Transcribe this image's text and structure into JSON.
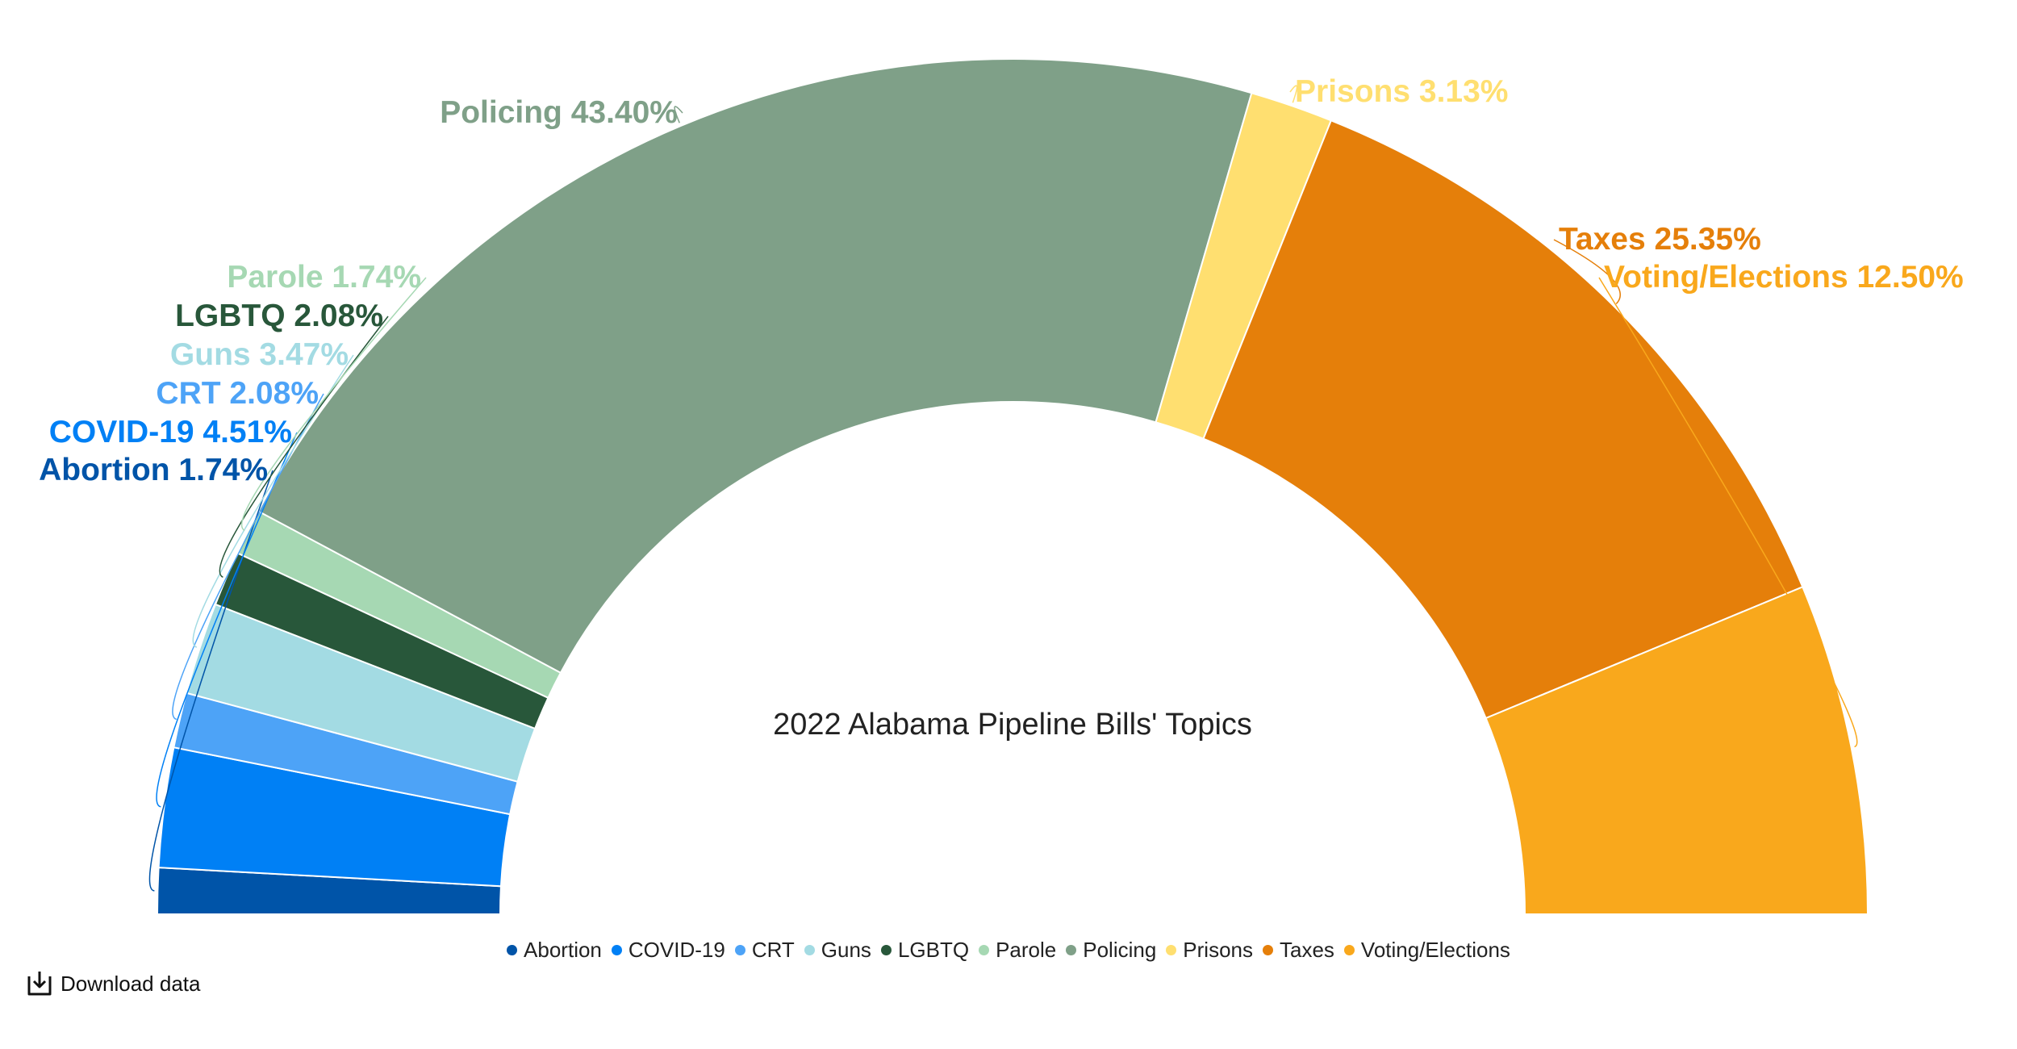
{
  "chart_data": {
    "type": "pie",
    "subtype": "half-donut",
    "title": "2022 Alabama Pipeline Bills' Topics",
    "slices": [
      {
        "name": "Abortion",
        "value": 1.74,
        "label": "Abortion 1.74%",
        "color": "#0054A8"
      },
      {
        "name": "COVID-19",
        "value": 4.51,
        "label": "COVID-19 4.51%",
        "color": "#0080F5"
      },
      {
        "name": "CRT",
        "value": 2.08,
        "label": "CRT 2.08%",
        "color": "#4DA3F7"
      },
      {
        "name": "Guns",
        "value": 3.47,
        "label": "Guns 3.47%",
        "color": "#A3DBE3"
      },
      {
        "name": "LGBTQ",
        "value": 2.08,
        "label": "LGBTQ 2.08%",
        "color": "#28573A"
      },
      {
        "name": "Parole",
        "value": 1.74,
        "label": "Parole 1.74%",
        "color": "#A6D8B3"
      },
      {
        "name": "Policing",
        "value": 43.4,
        "label": "Policing 43.40%",
        "color": "#7FA088"
      },
      {
        "name": "Prisons",
        "value": 3.13,
        "label": "Prisons 3.13%",
        "color": "#FFDF70"
      },
      {
        "name": "Taxes",
        "value": 25.35,
        "label": "Taxes 25.35%",
        "color": "#E57F0A"
      },
      {
        "name": "Voting/Elections",
        "value": 12.5,
        "label": "Voting/Elections 12.50%",
        "color": "#F9A81C"
      }
    ],
    "legend_position": "bottom"
  },
  "ui": {
    "download_label": "Download data"
  }
}
